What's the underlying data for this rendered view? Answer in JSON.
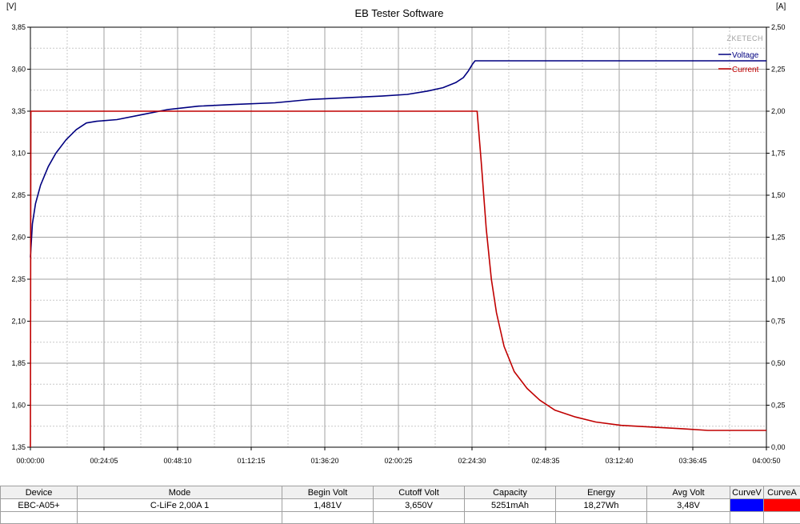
{
  "chart_data": {
    "type": "line",
    "title": "EB Tester Software",
    "watermark": "ZKETECH",
    "y_left_unit": "[V]",
    "y_right_unit": "[A]",
    "y_left_range": [
      1.35,
      3.85
    ],
    "y_right_range": [
      0.0,
      2.5
    ],
    "x_range_seconds": [
      0,
      14450
    ],
    "grid": true,
    "legend_position": "top-right",
    "x_ticks": [
      {
        "label": "00:00:00",
        "t": 0
      },
      {
        "label": "00:24:05",
        "t": 1445
      },
      {
        "label": "00:48:10",
        "t": 2890
      },
      {
        "label": "01:12:15",
        "t": 4335
      },
      {
        "label": "01:36:20",
        "t": 5780
      },
      {
        "label": "02:00:25",
        "t": 7225
      },
      {
        "label": "02:24:30",
        "t": 8670
      },
      {
        "label": "02:48:35",
        "t": 10115
      },
      {
        "label": "03:12:40",
        "t": 11560
      },
      {
        "label": "03:36:45",
        "t": 13005
      },
      {
        "label": "04:00:50",
        "t": 14450
      }
    ],
    "y_left_ticks": [
      {
        "label": "3,85",
        "v": 3.85
      },
      {
        "label": "3,60",
        "v": 3.6
      },
      {
        "label": "3,35",
        "v": 3.35
      },
      {
        "label": "3,10",
        "v": 3.1
      },
      {
        "label": "2,85",
        "v": 2.85
      },
      {
        "label": "2,60",
        "v": 2.6
      },
      {
        "label": "2,35",
        "v": 2.35
      },
      {
        "label": "2,10",
        "v": 2.1
      },
      {
        "label": "1,85",
        "v": 1.85
      },
      {
        "label": "1,60",
        "v": 1.6
      },
      {
        "label": "1,35",
        "v": 1.35
      }
    ],
    "y_right_ticks": [
      {
        "label": "2,50",
        "v": 2.5
      },
      {
        "label": "2,25",
        "v": 2.25
      },
      {
        "label": "2,00",
        "v": 2.0
      },
      {
        "label": "1,75",
        "v": 1.75
      },
      {
        "label": "1,50",
        "v": 1.5
      },
      {
        "label": "1,25",
        "v": 1.25
      },
      {
        "label": "1,00",
        "v": 1.0
      },
      {
        "label": "0,75",
        "v": 0.75
      },
      {
        "label": "0,50",
        "v": 0.5
      },
      {
        "label": "0,25",
        "v": 0.25
      },
      {
        "label": "0,00",
        "v": 0.0
      }
    ],
    "series": [
      {
        "name": "Voltage",
        "axis": "left",
        "color": "#000080",
        "points": [
          [
            0,
            2.48
          ],
          [
            40,
            2.68
          ],
          [
            100,
            2.8
          ],
          [
            200,
            2.91
          ],
          [
            350,
            3.02
          ],
          [
            500,
            3.1
          ],
          [
            700,
            3.18
          ],
          [
            900,
            3.24
          ],
          [
            1100,
            3.28
          ],
          [
            1300,
            3.29
          ],
          [
            1700,
            3.3
          ],
          [
            2200,
            3.33
          ],
          [
            2700,
            3.36
          ],
          [
            3300,
            3.38
          ],
          [
            4000,
            3.39
          ],
          [
            4800,
            3.4
          ],
          [
            5500,
            3.42
          ],
          [
            6200,
            3.43
          ],
          [
            6900,
            3.44
          ],
          [
            7400,
            3.45
          ],
          [
            7800,
            3.47
          ],
          [
            8100,
            3.49
          ],
          [
            8350,
            3.52
          ],
          [
            8500,
            3.55
          ],
          [
            8600,
            3.59
          ],
          [
            8680,
            3.63
          ],
          [
            8730,
            3.65
          ],
          [
            14450,
            3.65
          ]
        ]
      },
      {
        "name": "Current",
        "axis": "right",
        "color": "#c00000",
        "points": [
          [
            0,
            0.0
          ],
          [
            10,
            2.0
          ],
          [
            8770,
            2.0
          ],
          [
            8850,
            1.7
          ],
          [
            8950,
            1.3
          ],
          [
            9050,
            1.0
          ],
          [
            9150,
            0.8
          ],
          [
            9300,
            0.6
          ],
          [
            9500,
            0.45
          ],
          [
            9750,
            0.35
          ],
          [
            10000,
            0.28
          ],
          [
            10300,
            0.22
          ],
          [
            10700,
            0.18
          ],
          [
            11100,
            0.15
          ],
          [
            11600,
            0.13
          ],
          [
            12200,
            0.12
          ],
          [
            12800,
            0.11
          ],
          [
            13300,
            0.1
          ],
          [
            13900,
            0.1
          ],
          [
            14450,
            0.1
          ]
        ]
      }
    ]
  },
  "stats": {
    "headers": [
      "Device",
      "Mode",
      "Begin Volt",
      "Cutoff Volt",
      "Capacity",
      "Energy",
      "Avg Volt",
      "CurveV",
      "CurveA"
    ],
    "values": [
      "EBC-A05+",
      "C-LiFe  2,00A  1",
      "1,481V",
      "3,650V",
      "5251mAh",
      "18,27Wh",
      "3,48V"
    ],
    "curve_v_color": "#0000ff",
    "curve_a_color": "#ff0000"
  }
}
